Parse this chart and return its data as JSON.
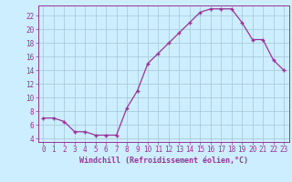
{
  "x": [
    0,
    1,
    2,
    3,
    4,
    5,
    6,
    7,
    8,
    9,
    10,
    11,
    12,
    13,
    14,
    15,
    16,
    17,
    18,
    19,
    20,
    21,
    22,
    23
  ],
  "y": [
    7,
    7,
    6.5,
    5,
    5,
    4.5,
    4.5,
    4.5,
    8.5,
    11,
    15,
    16.5,
    18,
    19.5,
    21,
    22.5,
    23,
    23,
    23,
    21,
    18.5,
    18.5,
    15.5,
    14
  ],
  "line_color": "#993399",
  "marker": "+",
  "bg_color": "#cceeff",
  "grid_color": "#aaccdd",
  "xlabel": "Windchill (Refroidissement éolien,°C)",
  "xlim": [
    -0.5,
    23.5
  ],
  "ylim": [
    3.5,
    23.5
  ],
  "yticks": [
    4,
    6,
    8,
    10,
    12,
    14,
    16,
    18,
    20,
    22
  ],
  "xticks": [
    0,
    1,
    2,
    3,
    4,
    5,
    6,
    7,
    8,
    9,
    10,
    11,
    12,
    13,
    14,
    15,
    16,
    17,
    18,
    19,
    20,
    21,
    22,
    23
  ],
  "tick_fontsize": 5.5,
  "xlabel_fontsize": 6.0,
  "markersize": 3,
  "linewidth": 0.9
}
